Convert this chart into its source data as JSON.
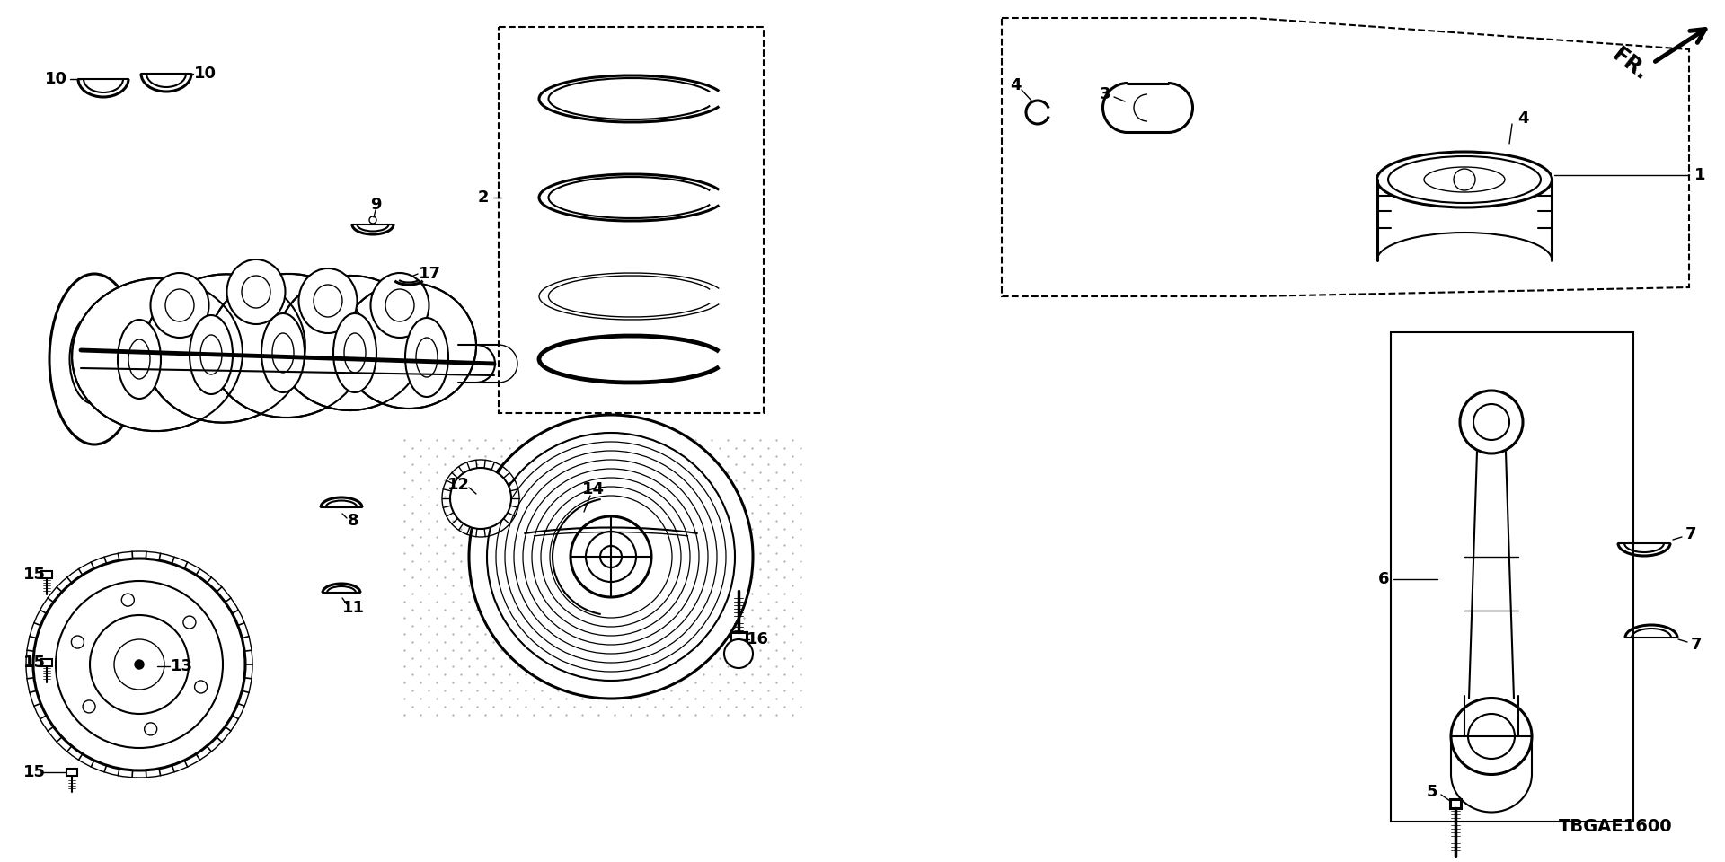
{
  "bg_color": "#ffffff",
  "line_color": "#000000",
  "code": "TBGAE1600"
}
